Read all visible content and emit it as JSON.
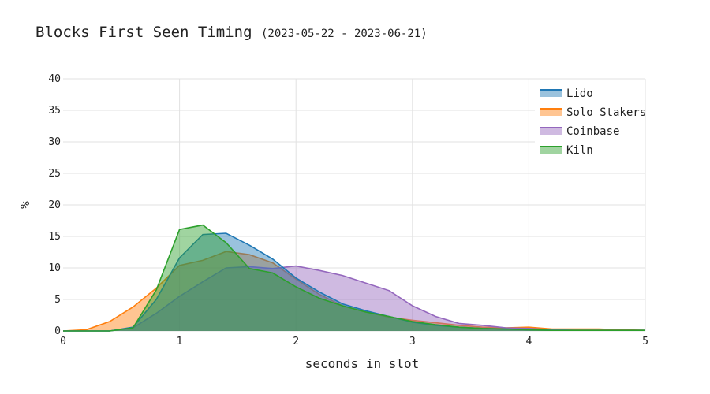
{
  "title": "Blocks First Seen Timing",
  "subtitle": "(2023-05-22 - 2023-06-21)",
  "chart_data": {
    "type": "area",
    "xlabel": "seconds in slot",
    "ylabel": "%",
    "xlim": [
      0,
      5
    ],
    "ylim": [
      0,
      40
    ],
    "x_ticks": [
      "0",
      "1",
      "2",
      "3",
      "4",
      "5"
    ],
    "y_ticks": [
      "0",
      "5",
      "10",
      "15",
      "20",
      "25",
      "30",
      "35",
      "40"
    ],
    "grid": true,
    "legend_position": "top-right",
    "series": [
      {
        "name": "Solo Stakers",
        "color": "#ff7f0e",
        "x": [
          0,
          0.2,
          0.4,
          0.6,
          0.8,
          1.0,
          1.2,
          1.4,
          1.6,
          1.8,
          2.0,
          2.2,
          2.4,
          2.6,
          2.8,
          3.0,
          3.2,
          3.4,
          3.6,
          3.8,
          4.0,
          4.2,
          4.4,
          4.6,
          4.8,
          5.0
        ],
        "values": [
          0,
          0.2,
          1.5,
          3.8,
          6.8,
          10.4,
          11.2,
          12.6,
          12.1,
          10.8,
          8.2,
          5.8,
          4.0,
          3.0,
          2.2,
          1.7,
          1.3,
          0.9,
          0.6,
          0.5,
          0.6,
          0.3,
          0.3,
          0.3,
          0.2,
          0.1
        ]
      },
      {
        "name": "Coinbase",
        "color": "#9467bd",
        "x": [
          0,
          0.2,
          0.4,
          0.6,
          0.8,
          1.0,
          1.2,
          1.4,
          1.6,
          1.8,
          2.0,
          2.2,
          2.4,
          2.6,
          2.8,
          3.0,
          3.2,
          3.4,
          3.6,
          3.8,
          4.0,
          4.2,
          4.4,
          4.6,
          4.8,
          5.0
        ],
        "values": [
          0,
          0,
          0,
          0.5,
          2.8,
          5.5,
          7.8,
          10.0,
          10.2,
          9.9,
          10.3,
          9.6,
          8.8,
          7.6,
          6.4,
          4.0,
          2.3,
          1.2,
          0.9,
          0.5,
          0.4,
          0.2,
          0.1,
          0.1,
          0.1,
          0.1
        ]
      },
      {
        "name": "Lido",
        "color": "#1f77b4",
        "x": [
          0,
          0.2,
          0.4,
          0.6,
          0.8,
          1.0,
          1.2,
          1.4,
          1.6,
          1.8,
          2.0,
          2.2,
          2.4,
          2.6,
          2.8,
          3.0,
          3.2,
          3.4,
          3.6,
          3.8,
          4.0,
          4.2,
          4.4,
          4.6,
          4.8,
          5.0
        ],
        "values": [
          0,
          0,
          0,
          0.6,
          5.0,
          11.6,
          15.3,
          15.5,
          13.6,
          11.4,
          8.4,
          6.2,
          4.3,
          3.2,
          2.3,
          1.4,
          0.9,
          0.6,
          0.4,
          0.3,
          0.2,
          0.1,
          0.1,
          0.1,
          0.1,
          0.1
        ]
      },
      {
        "name": "Kiln",
        "color": "#2ca02c",
        "x": [
          0,
          0.2,
          0.4,
          0.6,
          0.8,
          1.0,
          1.2,
          1.4,
          1.6,
          1.8,
          2.0,
          2.2,
          2.4,
          2.6,
          2.8,
          3.0,
          3.2,
          3.4,
          3.6,
          3.8,
          4.0,
          4.2,
          4.4,
          4.6,
          4.8,
          5.0
        ],
        "values": [
          0,
          0,
          0,
          0.5,
          6.5,
          16.1,
          16.8,
          14.0,
          9.9,
          9.2,
          7.0,
          5.2,
          4.0,
          3.0,
          2.3,
          1.5,
          1.0,
          0.6,
          0.4,
          0.3,
          0.2,
          0.1,
          0.1,
          0.1,
          0.1,
          0.1
        ]
      }
    ],
    "legend_order": [
      "Lido",
      "Solo Stakers",
      "Coinbase",
      "Kiln"
    ]
  }
}
